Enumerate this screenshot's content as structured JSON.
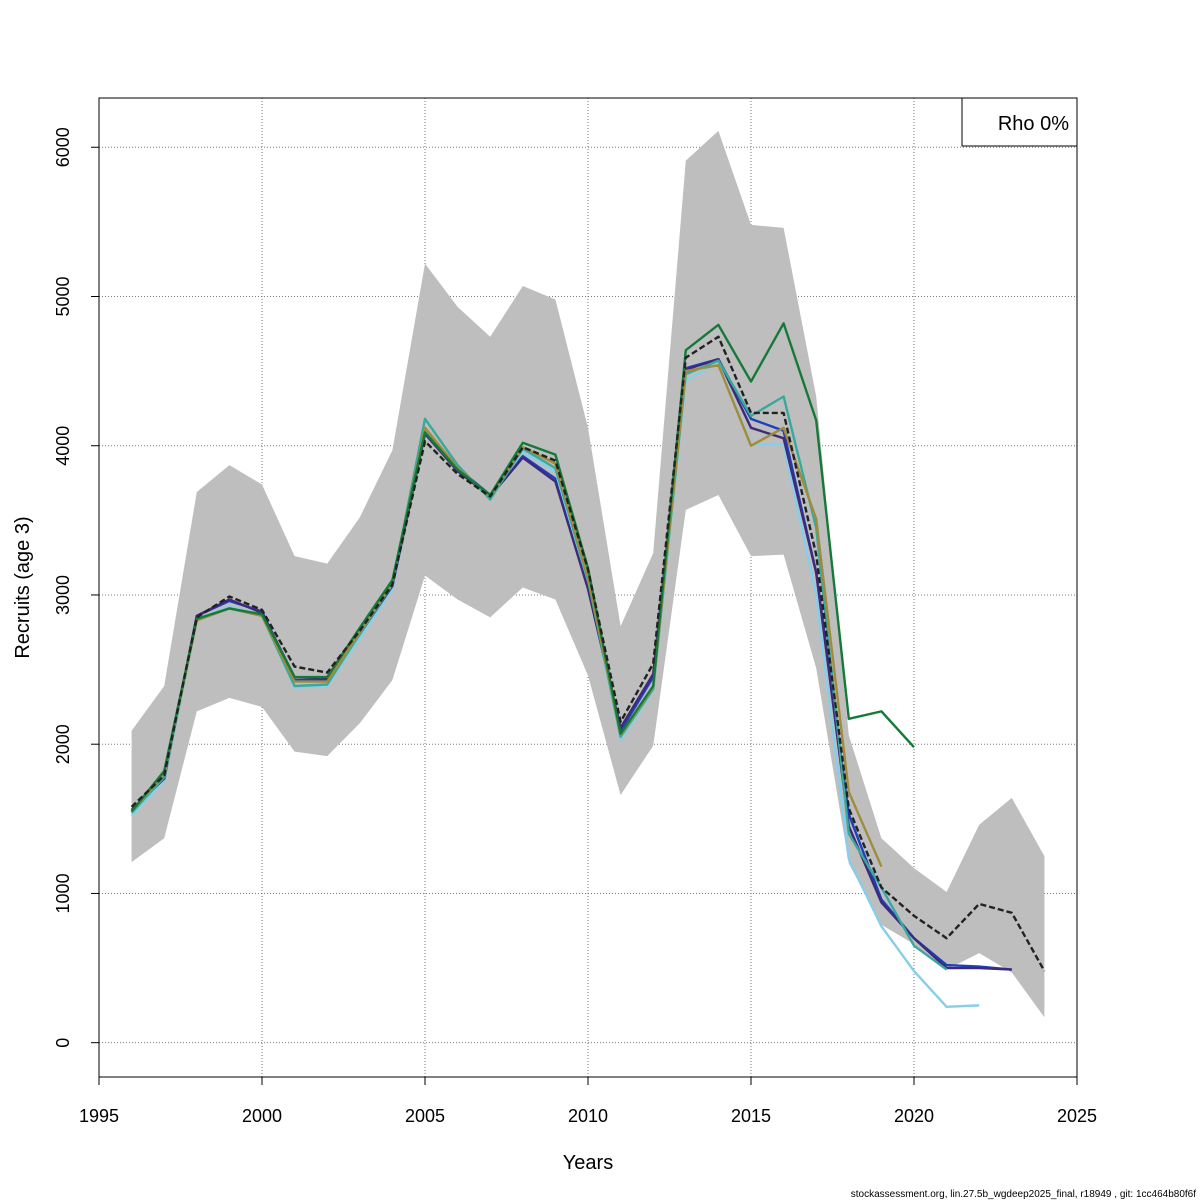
{
  "chart_data": {
    "type": "line",
    "xlabel": "Years",
    "ylabel": "Recruits (age 3)",
    "xlim": [
      1995,
      2025
    ],
    "ylim": [
      -230,
      6330
    ],
    "x_ticks": [
      1995,
      2000,
      2005,
      2010,
      2015,
      2020,
      2025
    ],
    "y_ticks": [
      0,
      1000,
      2000,
      3000,
      4000,
      5000,
      6000
    ],
    "grid": true,
    "legend": {
      "position": "top-right",
      "text": "Rho 0%"
    },
    "confidence_band": {
      "x": [
        1996,
        1997,
        1998,
        1999,
        2000,
        2001,
        2002,
        2003,
        2004,
        2005,
        2006,
        2007,
        2008,
        2009,
        2010,
        2011,
        2012,
        2013,
        2014,
        2015,
        2016,
        2017,
        2018,
        2019,
        2020,
        2021,
        2022,
        2023,
        2024
      ],
      "upper": [
        2090,
        2390,
        3690,
        3870,
        3740,
        3260,
        3210,
        3520,
        3970,
        5220,
        4930,
        4730,
        5070,
        4980,
        4120,
        2790,
        3280,
        5910,
        6110,
        5480,
        5460,
        4330,
        2060,
        1370,
        1170,
        1010,
        1460,
        1640,
        1250
      ],
      "lower": [
        1210,
        1370,
        2220,
        2310,
        2250,
        1950,
        1920,
        2140,
        2430,
        3130,
        2970,
        2850,
        3050,
        2970,
        2460,
        1660,
        1990,
        3570,
        3670,
        3260,
        3270,
        2510,
        1200,
        790,
        660,
        490,
        600,
        470,
        170
      ]
    },
    "series": [
      {
        "color": "#222222",
        "dashed": true,
        "x": [
          1996,
          1997,
          1998,
          1999,
          2000,
          2001,
          2002,
          2003,
          2004,
          2005,
          2006,
          2007,
          2008,
          2009,
          2010,
          2011,
          2012,
          2013,
          2014,
          2015,
          2016,
          2017,
          2018,
          2019,
          2020,
          2021,
          2022,
          2023,
          2024
        ],
        "values": [
          1580,
          1790,
          2850,
          2990,
          2900,
          2520,
          2480,
          2760,
          3070,
          4030,
          3810,
          3660,
          3990,
          3900,
          3170,
          2150,
          2540,
          4590,
          4730,
          4220,
          4220,
          3270,
          1570,
          1040,
          850,
          700,
          930,
          870,
          480
        ]
      },
      {
        "color": "#1f3fbf",
        "dashed": false,
        "x": [
          1996,
          1997,
          1998,
          1999,
          2000,
          2001,
          2002,
          2003,
          2004,
          2005,
          2006,
          2007,
          2008,
          2009,
          2010,
          2011,
          2012,
          2013,
          2014,
          2015,
          2016,
          2017,
          2018,
          2019,
          2020,
          2021,
          2022,
          2023
        ],
        "values": [
          1550,
          1760,
          2860,
          2960,
          2890,
          2430,
          2430,
          2730,
          3060,
          4100,
          3850,
          3670,
          3930,
          3780,
          3050,
          2090,
          2450,
          4520,
          4580,
          4180,
          4100,
          3150,
          1530,
          960,
          700,
          520,
          510,
          490
        ]
      },
      {
        "color": "#87ceeb",
        "dashed": false,
        "x": [
          1996,
          1997,
          1998,
          1999,
          2000,
          2001,
          2002,
          2003,
          2004,
          2005,
          2006,
          2007,
          2008,
          2009,
          2010,
          2011,
          2012,
          2013,
          2014,
          2015,
          2016,
          2017,
          2018,
          2019,
          2020,
          2021,
          2022
        ],
        "values": [
          1520,
          1760,
          2840,
          2920,
          2870,
          2380,
          2390,
          2710,
          3040,
          4110,
          3850,
          3660,
          3960,
          3830,
          3080,
          2030,
          2360,
          4440,
          4550,
          4010,
          4010,
          3000,
          1230,
          780,
          480,
          240,
          250
        ]
      },
      {
        "color": "#3d2a7a",
        "dashed": false,
        "x": [
          1996,
          1997,
          1998,
          1999,
          2000,
          2001,
          2002,
          2003,
          2004,
          2005,
          2006,
          2007,
          2008,
          2009,
          2010,
          2011,
          2012,
          2013,
          2014,
          2015,
          2016,
          2017,
          2018,
          2019,
          2020,
          2021,
          2022,
          2023
        ],
        "values": [
          1560,
          1770,
          2860,
          2970,
          2880,
          2450,
          2440,
          2740,
          3060,
          4080,
          3830,
          3660,
          3920,
          3760,
          3040,
          2110,
          2470,
          4510,
          4580,
          4120,
          4050,
          3150,
          1450,
          940,
          700,
          500,
          500,
          490
        ]
      },
      {
        "color": "#3aa89b",
        "dashed": false,
        "x": [
          1996,
          1997,
          1998,
          1999,
          2000,
          2001,
          2002,
          2003,
          2004,
          2005,
          2006,
          2007,
          2008,
          2009,
          2010,
          2011,
          2012,
          2013,
          2014,
          2015,
          2016,
          2017,
          2018,
          2019,
          2020,
          2021
        ],
        "values": [
          1540,
          1780,
          2830,
          2910,
          2860,
          2390,
          2400,
          2740,
          3070,
          4180,
          3870,
          3640,
          3980,
          3850,
          3100,
          2050,
          2370,
          4480,
          4570,
          4200,
          4330,
          3450,
          1400,
          1040,
          650,
          490
        ]
      },
      {
        "color": "#a08c3a",
        "dashed": false,
        "x": [
          1996,
          1997,
          1998,
          1999,
          2000,
          2001,
          2002,
          2003,
          2004,
          2005,
          2006,
          2007,
          2008,
          2009,
          2010,
          2011,
          2012,
          2013,
          2014,
          2015,
          2016,
          2017,
          2018,
          2019
        ],
        "values": [
          1550,
          1800,
          2830,
          2910,
          2860,
          2420,
          2420,
          2750,
          3080,
          4120,
          3850,
          3660,
          3990,
          3880,
          3120,
          2060,
          2380,
          4500,
          4540,
          4000,
          4120,
          3510,
          1680,
          1180
        ]
      },
      {
        "color": "#157a38",
        "dashed": false,
        "x": [
          1996,
          1997,
          1998,
          1999,
          2000,
          2001,
          2002,
          2003,
          2004,
          2005,
          2006,
          2007,
          2008,
          2009,
          2010,
          2011,
          2012,
          2013,
          2014,
          2015,
          2016,
          2017,
          2018,
          2019,
          2020
        ],
        "values": [
          1550,
          1820,
          2840,
          2910,
          2870,
          2450,
          2450,
          2780,
          3100,
          4090,
          3840,
          3670,
          4020,
          3940,
          3180,
          2070,
          2390,
          4640,
          4810,
          4430,
          4820,
          4170,
          2170,
          2220,
          1980
        ]
      }
    ]
  },
  "footer": "stockassessment.org, lin.27.5b_wgdeep2025_final, r18949 , git: 1cc464b80f6f"
}
